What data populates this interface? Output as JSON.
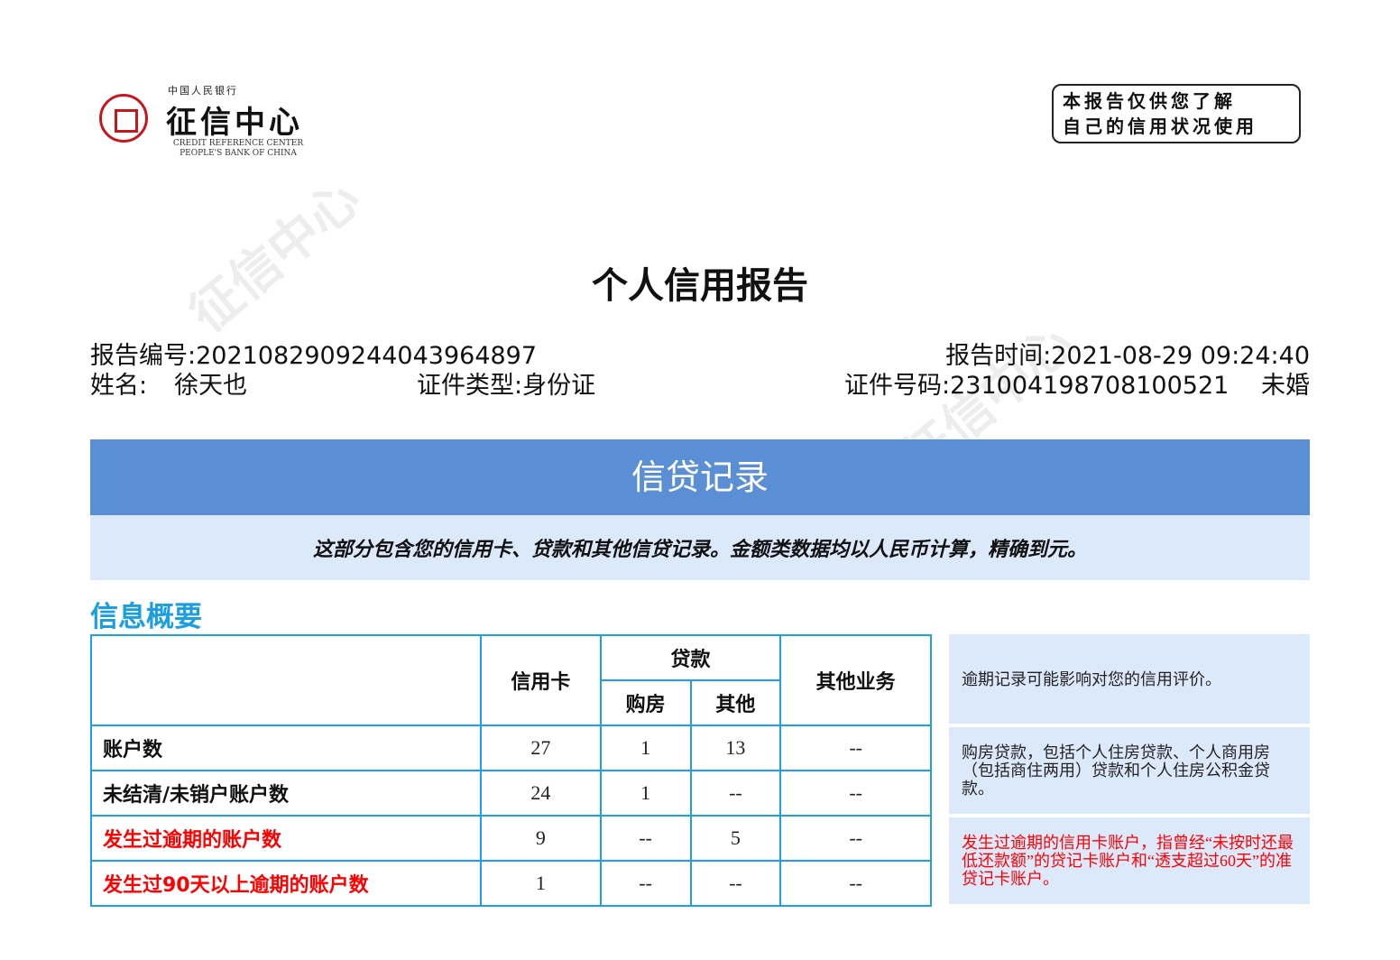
{
  "logo": {
    "top": "中国人民银行",
    "main": "征信中心",
    "en1": "CREDIT REFERENCE CENTER",
    "en2": "PEOPLE'S BANK OF CHINA"
  },
  "stamp": {
    "line1": "本报告仅供您了解",
    "line2": "自己的信用状况使用"
  },
  "title": "个人信用报告",
  "report": {
    "number_label": "报告编号:",
    "number": "2021082909244043964897",
    "time_label": "报告时间:",
    "time": "2021-08-29 09:24:40",
    "name_label": "姓名:",
    "name": "徐天也",
    "id_type_label": "证件类型:",
    "id_type": "身份证",
    "id_no_label": "证件号码:",
    "id_no": "231004198708100521",
    "marital": "未婚"
  },
  "section": {
    "title": "信贷记录",
    "desc": "这部分包含您的信用卡、贷款和其他信贷记录。金额类数据均以人民币计算，精确到元。"
  },
  "summary": {
    "title": "信息概要",
    "headers": {
      "credit_card": "信用卡",
      "loan": "贷款",
      "house": "购房",
      "other_loan": "其他",
      "other_business": "其他业务"
    },
    "rows": [
      {
        "label": "账户数",
        "values": [
          "27",
          "1",
          "13",
          "--"
        ],
        "red": false
      },
      {
        "label": "未结清/未销户账户数",
        "values": [
          "24",
          "1",
          "--",
          "--"
        ],
        "red": false
      },
      {
        "label": "发生过逾期的账户数",
        "values": [
          "9",
          "--",
          "5",
          "--"
        ],
        "red": true
      },
      {
        "label": "发生过90天以上逾期的账户数",
        "values": [
          "1",
          "--",
          "--",
          "--"
        ],
        "red": true
      }
    ],
    "notes": [
      "逾期记录可能影响对您的信用评价。",
      "购房贷款，包括个人住房贷款、个人商用房（包括商住两用）贷款和个人住房公积金贷款。",
      "发生过逾期的信用卡账户，指曾经“未按时还最低还款额”的贷记卡账户和“透支超过60天”的准贷记卡账户。"
    ]
  },
  "colors": {
    "band": "#5a8fd6",
    "subband": "#dce9fb",
    "accent": "#1a9fe0",
    "red": "#ff0000",
    "logo_red": "#c8161d"
  }
}
